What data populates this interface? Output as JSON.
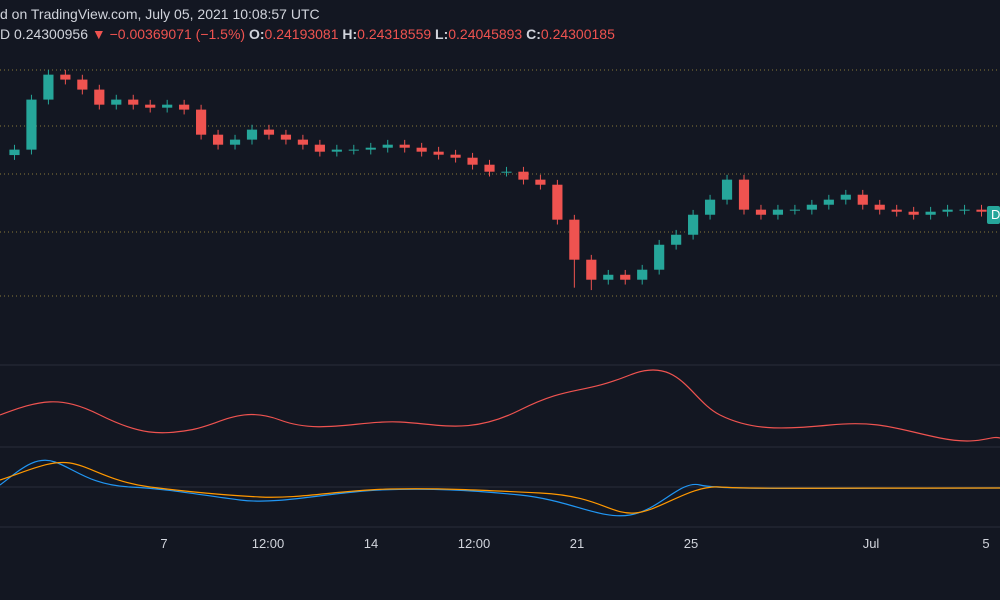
{
  "header": {
    "source": "d on TradingView.com, July 05, 2021 10:08:57 UTC",
    "symbol_tail": "D",
    "last": "0.24300956",
    "change": "−0.00369071 (−1.5%)",
    "ohlc": [
      {
        "label": "O:",
        "value": "0.24193081"
      },
      {
        "label": "H:",
        "value": "0.24318559"
      },
      {
        "label": "L:",
        "value": "0.24045893"
      },
      {
        "label": "C:",
        "value": "0.24300185"
      }
    ]
  },
  "price_tag": "D",
  "time_axis": [
    "7",
    "12:00",
    "14",
    "12:00",
    "21",
    "25",
    "Jul",
    "5"
  ],
  "chart_data": {
    "type": "candlestick",
    "up_color": "#26a69a",
    "down_color": "#ef5350",
    "ylim": [
      0.12,
      0.373
    ],
    "open": [
      0.29,
      0.2945,
      0.336,
      0.3567,
      0.3526,
      0.3443,
      0.3318,
      0.336,
      0.3318,
      0.3293,
      0.3318,
      0.3277,
      0.3069,
      0.2986,
      0.3028,
      0.3111,
      0.3069,
      0.3028,
      0.2986,
      0.2928,
      0.2945,
      0.2945,
      0.2961,
      0.2986,
      0.2961,
      0.2928,
      0.2903,
      0.2878,
      0.282,
      0.2762,
      0.2762,
      0.2696,
      0.2654,
      0.2364,
      0.2032,
      0.1866,
      0.1907,
      0.1866,
      0.1949,
      0.2156,
      0.2239,
      0.2405,
      0.253,
      0.2696,
      0.2447,
      0.2405,
      0.2447,
      0.2447,
      0.2488,
      0.253,
      0.2571,
      0.2488,
      0.2447,
      0.243,
      0.2405,
      0.243,
      0.2447,
      0.2447
    ],
    "high": [
      0.2985,
      0.34,
      0.3607,
      0.3607,
      0.3566,
      0.3483,
      0.34,
      0.34,
      0.3358,
      0.3358,
      0.3358,
      0.3317,
      0.3109,
      0.3068,
      0.3151,
      0.3151,
      0.3109,
      0.3068,
      0.3026,
      0.2985,
      0.2985,
      0.3001,
      0.3026,
      0.3026,
      0.3001,
      0.2968,
      0.2943,
      0.2918,
      0.286,
      0.2802,
      0.2802,
      0.2736,
      0.2694,
      0.2404,
      0.2072,
      0.1947,
      0.1947,
      0.1989,
      0.2196,
      0.2279,
      0.2445,
      0.257,
      0.2736,
      0.2736,
      0.2487,
      0.2487,
      0.2487,
      0.2528,
      0.257,
      0.2611,
      0.2611,
      0.2528,
      0.2487,
      0.247,
      0.247,
      0.2487,
      0.2487,
      0.2487
    ],
    "low": [
      0.286,
      0.2905,
      0.332,
      0.3486,
      0.3403,
      0.3278,
      0.3278,
      0.3278,
      0.3253,
      0.3253,
      0.3237,
      0.3029,
      0.2946,
      0.2946,
      0.2988,
      0.3029,
      0.2988,
      0.2946,
      0.2888,
      0.2888,
      0.2905,
      0.2905,
      0.2921,
      0.2921,
      0.2888,
      0.2863,
      0.2838,
      0.278,
      0.2722,
      0.2722,
      0.2656,
      0.2614,
      0.2324,
      0.18,
      0.178,
      0.1826,
      0.1826,
      0.1826,
      0.1909,
      0.2116,
      0.2199,
      0.2365,
      0.249,
      0.2407,
      0.2365,
      0.2365,
      0.2407,
      0.2407,
      0.2448,
      0.249,
      0.2448,
      0.2407,
      0.239,
      0.2365,
      0.2365,
      0.239,
      0.2407,
      0.239
    ],
    "close": [
      0.2945,
      0.336,
      0.3567,
      0.3526,
      0.3443,
      0.3318,
      0.336,
      0.3318,
      0.3293,
      0.3318,
      0.3277,
      0.3069,
      0.2986,
      0.3028,
      0.3111,
      0.3069,
      0.3028,
      0.2986,
      0.2928,
      0.2945,
      0.2945,
      0.2961,
      0.2986,
      0.2961,
      0.2928,
      0.2903,
      0.2878,
      0.282,
      0.2762,
      0.2762,
      0.2696,
      0.2654,
      0.2364,
      0.2032,
      0.1866,
      0.1907,
      0.1866,
      0.1949,
      0.2156,
      0.2239,
      0.2405,
      0.253,
      0.2696,
      0.2447,
      0.2405,
      0.2447,
      0.2447,
      0.2488,
      0.253,
      0.2571,
      0.2488,
      0.2447,
      0.243,
      0.2405,
      0.243,
      0.2447,
      0.2447,
      0.243
    ]
  }
}
